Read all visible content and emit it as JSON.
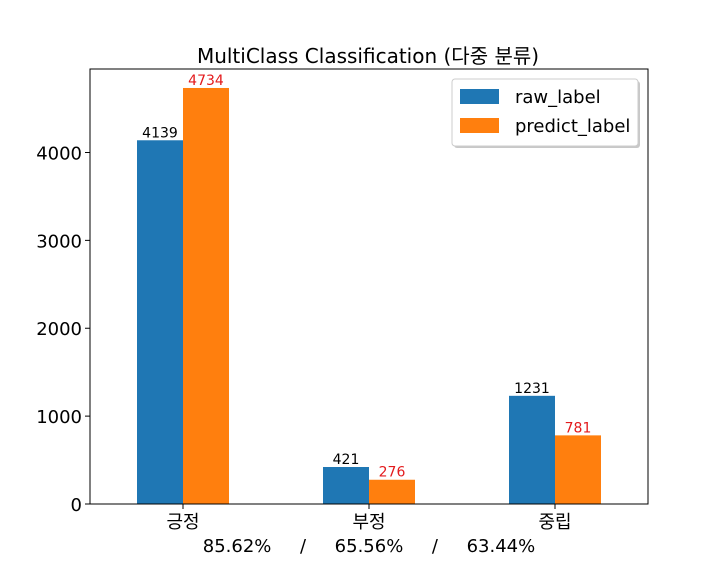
{
  "chart_data": {
    "type": "bar",
    "title": "MultiClass Classification (다중 분류)",
    "categories": [
      "긍정",
      "부정",
      "중립"
    ],
    "series": [
      {
        "name": "raw_label",
        "values": [
          4139,
          421,
          1231
        ],
        "color": "#1f77b4",
        "label_color": "#000000"
      },
      {
        "name": "predict_label",
        "values": [
          4734,
          276,
          781
        ],
        "color": "#ff7f0e",
        "label_color": "#e31a1c"
      }
    ],
    "ylim": [
      0,
      4950
    ],
    "yticks": [
      0,
      1000,
      2000,
      3000,
      4000
    ],
    "xlabel": "85.62%     /     65.56%     /     63.44%",
    "ylabel": "",
    "legend": "top-right",
    "grid": false
  }
}
